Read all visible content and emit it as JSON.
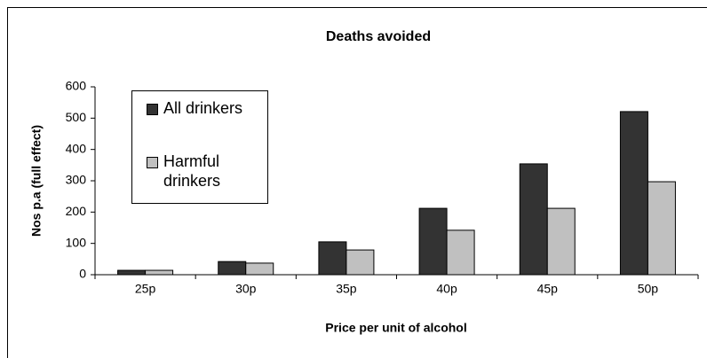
{
  "chart_data": {
    "type": "bar",
    "title": "Deaths avoided",
    "x_label": "Price per unit of alcohol",
    "y_label": "Nos p.a (full effect)",
    "categories": [
      "25p",
      "30p",
      "35p",
      "40p",
      "45p",
      "50p"
    ],
    "series": [
      {
        "name": "All drinkers",
        "color": "#333333",
        "values": [
          14,
          42,
          105,
          212,
          354,
          521
        ]
      },
      {
        "name": "Harmful drinkers",
        "color": "#c0c0c0",
        "values": [
          14,
          37,
          79,
          142,
          212,
          297
        ]
      }
    ],
    "ylim": [
      0,
      600
    ],
    "yticks": [
      0,
      100,
      200,
      300,
      400,
      500,
      600
    ],
    "grid": false
  }
}
